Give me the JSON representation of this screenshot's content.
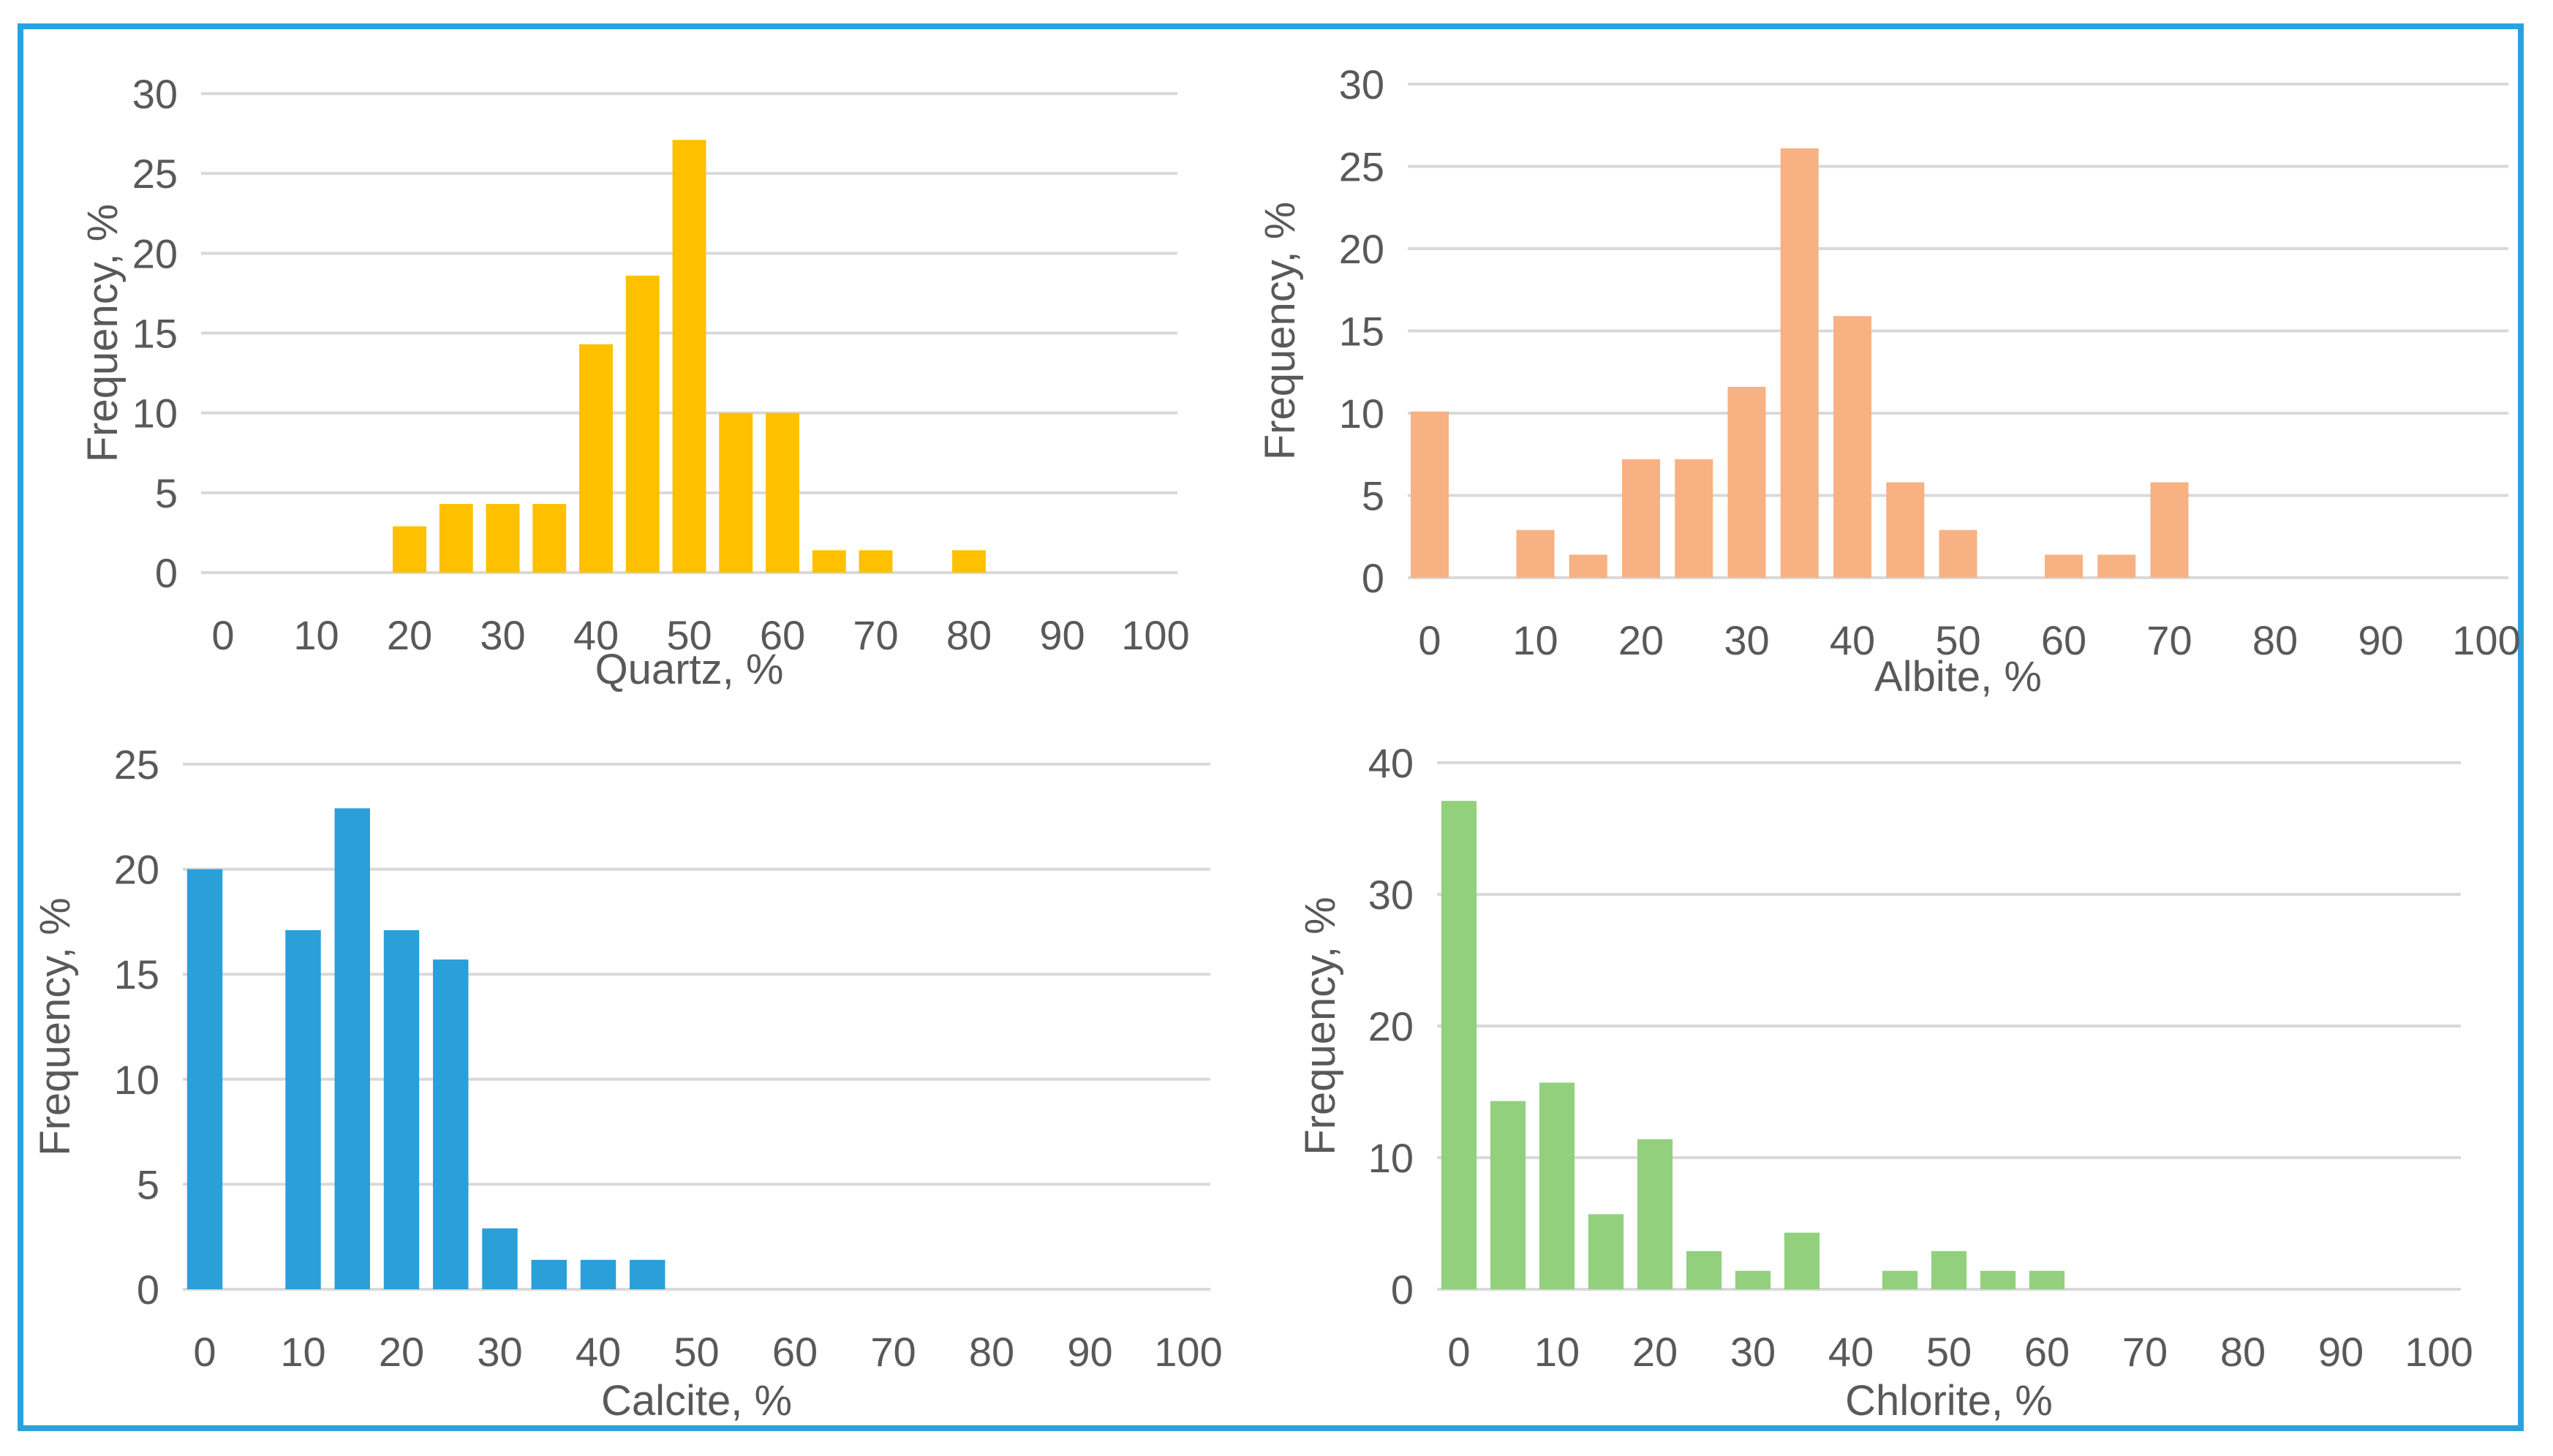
{
  "frame_color": "#29a3e0",
  "chart_data": [
    {
      "type": "bar",
      "id": "quartz",
      "color": "#ffc000",
      "xlabel": "Quartz, %",
      "ylabel": "Frequency, %",
      "ylim": [
        0,
        30
      ],
      "yticks": [
        0,
        5,
        10,
        15,
        20,
        25,
        30
      ],
      "xticks": [
        0,
        10,
        20,
        30,
        40,
        50,
        60,
        70,
        80,
        90,
        100
      ],
      "grid": true,
      "x": [
        0,
        5,
        10,
        15,
        20,
        25,
        30,
        35,
        40,
        45,
        50,
        55,
        60,
        65,
        70,
        75,
        80,
        85,
        90,
        95,
        100
      ],
      "values": [
        0,
        0,
        0,
        0,
        2.9,
        4.3,
        4.3,
        4.3,
        14.3,
        18.6,
        27.1,
        10,
        10,
        1.4,
        1.4,
        0,
        1.4,
        0,
        0,
        0,
        0
      ]
    },
    {
      "type": "bar",
      "id": "albite",
      "color": "#f8b183",
      "xlabel": "Albite, %",
      "ylabel": "Frequency, %",
      "ylim": [
        0,
        30
      ],
      "yticks": [
        0,
        5,
        10,
        15,
        20,
        25,
        30
      ],
      "xticks": [
        0,
        10,
        20,
        30,
        40,
        50,
        60,
        70,
        80,
        90,
        100
      ],
      "grid": true,
      "x": [
        0,
        5,
        10,
        15,
        20,
        25,
        30,
        35,
        40,
        45,
        50,
        55,
        60,
        65,
        70,
        75,
        80,
        85,
        90,
        95,
        100
      ],
      "values": [
        10.1,
        0,
        2.9,
        1.4,
        7.2,
        7.2,
        11.6,
        26.1,
        15.9,
        5.8,
        2.9,
        0,
        1.4,
        1.4,
        5.8,
        0,
        0,
        0,
        0,
        0,
        0
      ]
    },
    {
      "type": "bar",
      "id": "calcite",
      "color": "#2a9fd8",
      "xlabel": "Calcite, %",
      "ylabel": "Frequency, %",
      "ylim": [
        0,
        25
      ],
      "yticks": [
        0,
        5,
        10,
        15,
        20,
        25
      ],
      "xticks": [
        0,
        10,
        20,
        30,
        40,
        50,
        60,
        70,
        80,
        90,
        100
      ],
      "grid": true,
      "x": [
        0,
        5,
        10,
        15,
        20,
        25,
        30,
        35,
        40,
        45,
        50,
        55,
        60,
        65,
        70,
        75,
        80,
        85,
        90,
        95,
        100
      ],
      "values": [
        20,
        0,
        17.1,
        22.9,
        17.1,
        15.7,
        2.9,
        1.4,
        1.4,
        1.4,
        0,
        0,
        0,
        0,
        0,
        0,
        0,
        0,
        0,
        0,
        0
      ]
    },
    {
      "type": "bar",
      "id": "chlorite",
      "color": "#92d07e",
      "xlabel": "Chlorite, %",
      "ylabel": "Frequency, %",
      "ylim": [
        0,
        40
      ],
      "yticks": [
        0,
        10,
        20,
        30,
        40
      ],
      "xticks": [
        0,
        10,
        20,
        30,
        40,
        50,
        60,
        70,
        80,
        90,
        100
      ],
      "grid": true,
      "x": [
        0,
        5,
        10,
        15,
        20,
        25,
        30,
        35,
        40,
        45,
        50,
        55,
        60,
        65,
        70,
        75,
        80,
        85,
        90,
        95,
        100
      ],
      "values": [
        37.1,
        14.3,
        15.7,
        5.7,
        11.4,
        2.9,
        1.4,
        4.3,
        0,
        1.4,
        2.9,
        1.4,
        1.4,
        0,
        0,
        0,
        0,
        0,
        0,
        0,
        0
      ]
    }
  ]
}
